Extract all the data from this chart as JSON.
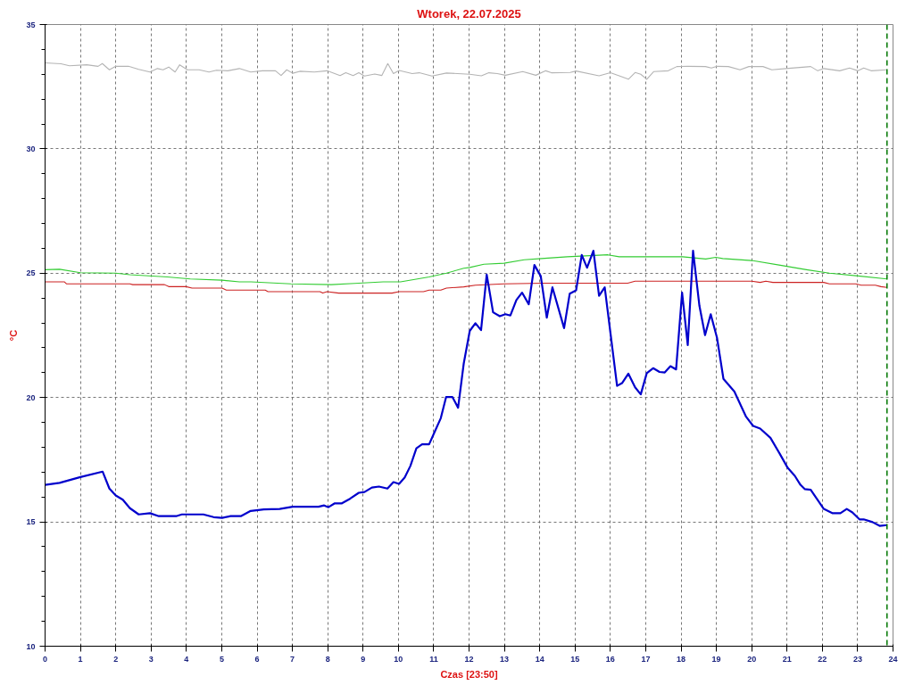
{
  "chart_data": {
    "type": "line",
    "title": "Wtorek, 22.07.2025",
    "xlabel": "Czas [23:50]",
    "ylabel": "°C",
    "xlim": [
      0,
      24
    ],
    "ylim": [
      10,
      35
    ],
    "xticks": [
      0,
      1,
      2,
      3,
      4,
      5,
      6,
      7,
      8,
      9,
      10,
      11,
      12,
      13,
      14,
      15,
      16,
      17,
      18,
      19,
      20,
      21,
      22,
      23,
      24
    ],
    "yticks": [
      10,
      {
        "value": 11,
        "label": null
      },
      {
        "value": 12,
        "label": null
      },
      {
        "value": 13,
        "label": null
      },
      {
        "value": 14,
        "label": null
      },
      15,
      {
        "value": 16,
        "label": null
      },
      {
        "value": 17,
        "label": null
      },
      {
        "value": 18,
        "label": null
      },
      {
        "value": 19,
        "label": null
      },
      20,
      {
        "value": 21,
        "label": null
      },
      {
        "value": 22,
        "label": null
      },
      {
        "value": 23,
        "label": null
      },
      {
        "value": 24,
        "label": null
      },
      25,
      {
        "value": 26,
        "label": null
      },
      {
        "value": 27,
        "label": null
      },
      {
        "value": 28,
        "label": null
      },
      {
        "value": 29,
        "label": null
      },
      30,
      {
        "value": 31,
        "label": null
      },
      {
        "value": 32,
        "label": null
      },
      {
        "value": 33,
        "label": null
      },
      {
        "value": 34,
        "label": null
      },
      35
    ],
    "grid": true,
    "marker": "none",
    "line_style": "solid",
    "ref_lines": [
      {
        "axis": "x",
        "value": 23.83,
        "color": "#007700",
        "line_style": "dashed"
      }
    ],
    "series": [
      {
        "color": "#b4b4b4",
        "x": [
          0,
          0.45,
          0.69,
          1.18,
          1.5,
          1.62,
          1.82,
          2.0,
          2.36,
          2.65,
          2.97,
          3.18,
          3.34,
          3.5,
          3.68,
          3.81,
          4.03,
          4.36,
          4.64,
          4.85,
          5.17,
          5.5,
          5.82,
          6.15,
          6.52,
          6.68,
          6.84,
          7.01,
          7.21,
          7.62,
          7.98,
          8.35,
          8.51,
          8.72,
          8.88,
          9.04,
          9.33,
          9.53,
          9.7,
          9.86,
          10.02,
          10.39,
          10.59,
          10.95,
          11.36,
          12.02,
          12.35,
          12.56,
          12.8,
          13.03,
          13.52,
          13.89,
          14.17,
          14.33,
          14.86,
          15.03,
          15.68,
          16.0,
          16.25,
          16.51,
          16.7,
          16.86,
          17.03,
          17.23,
          17.64,
          17.88,
          18.2,
          18.69,
          18.86,
          19.02,
          19.34,
          19.67,
          19.92,
          20.32,
          20.57,
          20.97,
          21.67,
          21.87,
          22.04,
          22.49,
          22.77,
          23.01,
          23.17,
          23.38,
          23.83
        ],
        "values": [
          33.46,
          33.42,
          33.34,
          33.38,
          33.32,
          33.43,
          33.18,
          33.32,
          33.32,
          33.2,
          33.09,
          33.23,
          33.18,
          33.29,
          33.09,
          33.38,
          33.18,
          33.18,
          33.09,
          33.16,
          33.14,
          33.23,
          33.09,
          33.14,
          33.14,
          32.95,
          33.18,
          33.04,
          33.12,
          33.09,
          33.14,
          32.95,
          33.06,
          32.95,
          33.06,
          32.93,
          33.01,
          32.95,
          33.43,
          33.03,
          33.15,
          33.03,
          33.06,
          32.93,
          33.05,
          33.0,
          32.94,
          33.06,
          33.03,
          32.96,
          33.11,
          32.96,
          33.14,
          33.06,
          33.07,
          33.13,
          32.94,
          33.06,
          32.94,
          32.8,
          33.07,
          33.0,
          32.8,
          33.11,
          33.14,
          33.31,
          33.32,
          33.31,
          33.25,
          33.32,
          33.31,
          33.18,
          33.31,
          33.31,
          33.18,
          33.23,
          33.31,
          33.14,
          33.23,
          33.14,
          33.25,
          33.14,
          33.25,
          33.14,
          33.18
        ]
      },
      {
        "color": "#33cc33",
        "x": [
          0,
          0.41,
          1.0,
          2.0,
          2.4,
          3.46,
          4.11,
          5.01,
          5.5,
          5.83,
          6.96,
          8.1,
          8.76,
          9.57,
          10.06,
          10.87,
          11.36,
          11.85,
          12.02,
          12.42,
          12.99,
          13.56,
          14.05,
          14.78,
          15.93,
          16.25,
          18.04,
          18.7,
          18.98,
          19.18,
          20.0,
          20.81,
          21.55,
          22.2,
          23.01,
          23.83
        ],
        "values": [
          25.14,
          25.16,
          25.02,
          25.0,
          24.94,
          24.85,
          24.77,
          24.72,
          24.65,
          24.65,
          24.57,
          24.54,
          24.59,
          24.65,
          24.65,
          24.85,
          25.0,
          25.2,
          25.23,
          25.36,
          25.4,
          25.54,
          25.59,
          25.66,
          25.74,
          25.66,
          25.66,
          25.57,
          25.64,
          25.59,
          25.51,
          25.32,
          25.14,
          25.0,
          24.89,
          24.77
        ]
      },
      {
        "color": "#cc2222",
        "x": [
          0,
          0.55,
          0.61,
          2.4,
          2.48,
          3.38,
          3.5,
          3.99,
          4.16,
          5.01,
          5.13,
          6.23,
          6.31,
          7.78,
          7.86,
          7.98,
          8.31,
          9.82,
          10.02,
          10.71,
          10.87,
          11.2,
          11.36,
          11.85,
          12.18,
          12.99,
          14.13,
          16.49,
          16.7,
          20.0,
          20.24,
          20.4,
          20.6,
          22.04,
          22.2,
          22.94,
          23.1,
          23.5,
          23.66,
          23.83
        ],
        "values": [
          24.65,
          24.65,
          24.57,
          24.57,
          24.54,
          24.54,
          24.46,
          24.46,
          24.4,
          24.4,
          24.32,
          24.32,
          24.26,
          24.26,
          24.2,
          24.26,
          24.2,
          24.2,
          24.26,
          24.26,
          24.32,
          24.32,
          24.4,
          24.45,
          24.52,
          24.57,
          24.6,
          24.6,
          24.68,
          24.68,
          24.63,
          24.68,
          24.63,
          24.63,
          24.57,
          24.57,
          24.52,
          24.52,
          24.46,
          24.43
        ]
      },
      {
        "color": "#0000cc",
        "x": [
          0,
          0.41,
          1.0,
          1.63,
          1.82,
          2.0,
          2.2,
          2.4,
          2.65,
          2.97,
          3.22,
          3.71,
          3.87,
          4.48,
          4.77,
          5.01,
          5.25,
          5.54,
          5.82,
          6.19,
          6.64,
          7.01,
          7.74,
          7.9,
          8.02,
          8.19,
          8.39,
          8.63,
          8.88,
          9.04,
          9.25,
          9.45,
          9.69,
          9.86,
          10.02,
          10.18,
          10.34,
          10.51,
          10.67,
          10.87,
          11.04,
          11.2,
          11.35,
          11.53,
          11.69,
          11.85,
          12.02,
          12.18,
          12.34,
          12.5,
          12.68,
          12.87,
          13.03,
          13.17,
          13.34,
          13.5,
          13.69,
          13.85,
          14.03,
          14.2,
          14.36,
          14.69,
          14.85,
          15.03,
          15.19,
          15.34,
          15.52,
          15.68,
          15.84,
          16.19,
          16.33,
          16.51,
          16.7,
          16.86,
          17.03,
          17.21,
          17.39,
          17.54,
          17.7,
          17.86,
          18.03,
          18.19,
          18.34,
          18.52,
          18.68,
          18.84,
          19.02,
          19.2,
          19.51,
          19.84,
          20.04,
          20.24,
          20.53,
          20.81,
          21.02,
          21.22,
          21.38,
          21.5,
          21.67,
          22.04,
          22.28,
          22.51,
          22.69,
          22.85,
          23.05,
          23.17,
          23.42,
          23.62,
          23.83
        ],
        "values": [
          16.49,
          16.57,
          16.8,
          17.02,
          16.34,
          16.06,
          15.89,
          15.55,
          15.3,
          15.35,
          15.23,
          15.23,
          15.3,
          15.3,
          15.19,
          15.16,
          15.23,
          15.23,
          15.44,
          15.5,
          15.52,
          15.61,
          15.61,
          15.66,
          15.59,
          15.74,
          15.74,
          15.93,
          16.17,
          16.2,
          16.38,
          16.42,
          16.34,
          16.6,
          16.53,
          16.79,
          17.25,
          17.96,
          18.12,
          18.12,
          18.66,
          19.17,
          20.02,
          20.02,
          19.59,
          21.37,
          22.68,
          22.99,
          22.71,
          24.94,
          23.43,
          23.27,
          23.35,
          23.3,
          23.92,
          24.22,
          23.75,
          25.33,
          24.88,
          23.21,
          24.43,
          22.79,
          24.18,
          24.31,
          25.73,
          25.22,
          25.9,
          24.09,
          24.43,
          20.47,
          20.58,
          20.96,
          20.41,
          20.13,
          20.98,
          21.18,
          21.03,
          21.01,
          21.26,
          21.13,
          24.22,
          22.11,
          25.9,
          23.69,
          22.51,
          23.35,
          22.39,
          20.75,
          20.24,
          19.23,
          18.86,
          18.75,
          18.38,
          17.7,
          17.17,
          16.85,
          16.49,
          16.32,
          16.29,
          15.52,
          15.35,
          15.35,
          15.52,
          15.38,
          15.1,
          15.1,
          14.99,
          14.84,
          14.87
        ]
      }
    ]
  }
}
